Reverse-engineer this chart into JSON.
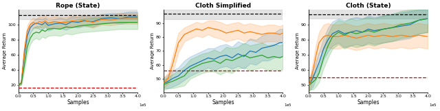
{
  "titles": [
    "Rope (State)",
    "Cloth Simplified",
    "Cloth (State)"
  ],
  "xlabel": "Samples",
  "ylabel": "Average Return",
  "line_colors": [
    "#1f77b4",
    "#ff7f0e",
    "#2ca02c"
  ],
  "alpha_fill": 0.18,
  "figsize": [
    6.4,
    1.62
  ],
  "dpi": 100,
  "plots": [
    {
      "ylim": [
        10,
        120
      ],
      "yticks": [
        20,
        40,
        60,
        80,
        100
      ],
      "yticklabels": [
        "20",
        "40",
        "60",
        "80",
        "100"
      ],
      "xlim": [
        0,
        400000.0
      ],
      "xticks": [
        0,
        50000.0,
        100000.0,
        150000.0,
        200000.0,
        250000.0,
        300000.0,
        350000.0,
        400000.0
      ],
      "xticklabels": [
        "0.0",
        "0.5",
        "1.0",
        "1.5",
        "2.0",
        "2.5",
        "3.0",
        "3.5",
        "4.0"
      ],
      "black_dashed_y": 113,
      "red_dashed_y": 16,
      "grey_band_ymin": 107,
      "grey_band_ymax": 122,
      "lines": [
        {
          "x": [
            0,
            2000,
            5000,
            10000,
            20000,
            30000,
            40000,
            50000,
            60000,
            70000,
            80000,
            90000,
            100000,
            120000,
            140000,
            160000,
            180000,
            200000,
            220000,
            250000,
            280000,
            310000,
            340000,
            370000,
            400000
          ],
          "y": [
            20,
            20,
            21,
            23,
            60,
            85,
            96,
            100,
            102,
            101,
            100,
            103,
            99,
            101,
            102,
            100,
            104,
            103,
            105,
            104,
            108,
            109,
            108,
            110,
            110
          ],
          "y_low": [
            19,
            19,
            20,
            21,
            53,
            78,
            90,
            95,
            96,
            94,
            93,
            97,
            92,
            95,
            95,
            93,
            97,
            96,
            98,
            97,
            102,
            103,
            101,
            103,
            103
          ],
          "y_high": [
            21,
            21,
            22,
            25,
            67,
            92,
            102,
            105,
            108,
            108,
            107,
            109,
            106,
            107,
            109,
            107,
            111,
            110,
            112,
            111,
            114,
            115,
            115,
            117,
            117
          ]
        },
        {
          "x": [
            0,
            2000,
            5000,
            10000,
            20000,
            30000,
            40000,
            50000,
            60000,
            70000,
            80000,
            90000,
            100000,
            120000,
            140000,
            160000,
            180000,
            200000,
            220000,
            250000,
            280000,
            310000,
            340000,
            370000,
            400000
          ],
          "y": [
            20,
            20,
            21,
            23,
            65,
            92,
            100,
            103,
            101,
            104,
            103,
            105,
            102,
            104,
            103,
            103,
            105,
            104,
            106,
            103,
            107,
            106,
            108,
            108,
            108
          ],
          "y_low": [
            19,
            19,
            20,
            21,
            58,
            85,
            94,
            97,
            95,
            97,
            96,
            98,
            95,
            97,
            96,
            96,
            98,
            97,
            99,
            96,
            100,
            99,
            101,
            101,
            101
          ],
          "y_high": [
            21,
            21,
            22,
            25,
            72,
            99,
            106,
            109,
            107,
            111,
            110,
            112,
            109,
            111,
            110,
            110,
            112,
            111,
            113,
            110,
            114,
            113,
            115,
            115,
            115
          ]
        },
        {
          "x": [
            0,
            2000,
            5000,
            10000,
            20000,
            30000,
            40000,
            50000,
            60000,
            70000,
            80000,
            90000,
            100000,
            120000,
            140000,
            160000,
            180000,
            200000,
            220000,
            250000,
            280000,
            310000,
            340000,
            370000,
            400000
          ],
          "y": [
            20,
            20,
            21,
            22,
            45,
            70,
            82,
            88,
            90,
            89,
            93,
            91,
            94,
            95,
            94,
            97,
            96,
            98,
            99,
            100,
            101,
            102,
            103,
            103,
            103
          ],
          "y_low": [
            19,
            19,
            19,
            20,
            38,
            62,
            74,
            80,
            82,
            80,
            84,
            82,
            85,
            86,
            85,
            88,
            87,
            89,
            90,
            91,
            92,
            93,
            94,
            94,
            94
          ],
          "y_high": [
            21,
            21,
            23,
            24,
            52,
            78,
            90,
            96,
            98,
            98,
            102,
            100,
            103,
            104,
            103,
            106,
            105,
            107,
            108,
            109,
            110,
            111,
            112,
            112,
            112
          ]
        }
      ]
    },
    {
      "ylim": [
        40,
        100
      ],
      "yticks": [
        50,
        60,
        70,
        80,
        90
      ],
      "yticklabels": [
        "50",
        "60",
        "70",
        "80",
        "90"
      ],
      "xlim": [
        0,
        400000.0
      ],
      "xticks": [
        0,
        50000.0,
        100000.0,
        150000.0,
        200000.0,
        250000.0,
        300000.0,
        350000.0,
        400000.0
      ],
      "xticklabels": [
        "0.0",
        "0.5",
        "1.0",
        "1.5",
        "2.0",
        "2.5",
        "3.0",
        "3.5",
        "4.0"
      ],
      "black_dashed_y": 97,
      "red_dashed_y": 56,
      "grey_band_ymin": 93,
      "grey_band_ymax": 100,
      "lines": [
        {
          "x": [
            0,
            5000,
            15000,
            30000,
            50000,
            70000,
            90000,
            110000,
            130000,
            150000,
            170000,
            190000,
            210000,
            230000,
            250000,
            270000,
            290000,
            310000,
            330000,
            350000,
            370000,
            390000,
            400000
          ],
          "y": [
            47,
            47,
            48,
            50,
            52,
            56,
            59,
            61,
            63,
            65,
            64,
            66,
            67,
            65,
            68,
            66,
            70,
            69,
            72,
            73,
            74,
            76,
            76
          ],
          "y_low": [
            43,
            43,
            43,
            44,
            46,
            49,
            52,
            54,
            56,
            58,
            56,
            58,
            59,
            57,
            59,
            57,
            61,
            60,
            63,
            63,
            65,
            66,
            66
          ],
          "y_high": [
            51,
            51,
            53,
            56,
            58,
            63,
            66,
            68,
            70,
            72,
            72,
            74,
            75,
            73,
            77,
            75,
            79,
            78,
            81,
            83,
            83,
            86,
            86
          ]
        },
        {
          "x": [
            0,
            5000,
            15000,
            30000,
            50000,
            70000,
            90000,
            110000,
            130000,
            150000,
            170000,
            190000,
            210000,
            230000,
            250000,
            270000,
            290000,
            310000,
            330000,
            350000,
            370000,
            390000,
            400000
          ],
          "y": [
            47,
            48,
            50,
            60,
            76,
            82,
            84,
            86,
            85,
            87,
            86,
            85,
            83,
            84,
            85,
            83,
            84,
            83,
            82,
            83,
            83,
            82,
            83
          ],
          "y_low": [
            43,
            44,
            46,
            54,
            69,
            77,
            79,
            81,
            80,
            82,
            80,
            79,
            77,
            78,
            79,
            77,
            78,
            77,
            76,
            77,
            77,
            76,
            77
          ],
          "y_high": [
            51,
            52,
            54,
            66,
            83,
            87,
            89,
            91,
            90,
            92,
            92,
            91,
            89,
            90,
            91,
            89,
            90,
            89,
            88,
            89,
            89,
            88,
            89
          ]
        },
        {
          "x": [
            0,
            5000,
            15000,
            30000,
            50000,
            70000,
            90000,
            110000,
            130000,
            150000,
            170000,
            190000,
            210000,
            230000,
            250000,
            270000,
            290000,
            310000,
            330000,
            350000,
            370000,
            390000,
            400000
          ],
          "y": [
            46,
            46,
            47,
            48,
            50,
            52,
            57,
            59,
            61,
            62,
            63,
            61,
            64,
            63,
            65,
            67,
            65,
            66,
            67,
            65,
            66,
            65,
            66
          ],
          "y_low": [
            42,
            42,
            43,
            43,
            44,
            45,
            50,
            52,
            54,
            55,
            55,
            53,
            55,
            54,
            57,
            58,
            56,
            57,
            58,
            56,
            57,
            56,
            57
          ],
          "y_high": [
            50,
            50,
            51,
            53,
            56,
            59,
            64,
            66,
            68,
            69,
            71,
            69,
            73,
            72,
            73,
            76,
            74,
            75,
            76,
            74,
            75,
            74,
            75
          ]
        }
      ]
    },
    {
      "ylim": [
        45,
        100
      ],
      "yticks": [
        50,
        60,
        70,
        80,
        90
      ],
      "yticklabels": [
        "50",
        "60",
        "70",
        "80",
        "90"
      ],
      "xlim": [
        0,
        400000.0
      ],
      "xticks": [
        0,
        50000.0,
        100000.0,
        150000.0,
        200000.0,
        250000.0,
        300000.0,
        350000.0,
        400000.0
      ],
      "xticklabels": [
        "0.0",
        "0.5",
        "1.0",
        "1.5",
        "2.0",
        "2.5",
        "3.0",
        "3.5",
        "4.0"
      ],
      "black_dashed_y": 97,
      "red_dashed_y": 55,
      "grey_band_ymin": 94,
      "grey_band_ymax": 102,
      "lines": [
        {
          "x": [
            0,
            3000,
            8000,
            15000,
            25000,
            35000,
            50000,
            65000,
            80000,
            100000,
            120000,
            140000,
            160000,
            180000,
            200000,
            220000,
            250000,
            280000,
            310000,
            340000,
            370000,
            400000
          ],
          "y": [
            50,
            51,
            52,
            55,
            60,
            65,
            74,
            80,
            84,
            86,
            84,
            85,
            86,
            85,
            87,
            86,
            87,
            88,
            89,
            90,
            93,
            94
          ],
          "y_low": [
            46,
            47,
            47,
            49,
            54,
            58,
            67,
            72,
            76,
            78,
            75,
            76,
            77,
            76,
            78,
            77,
            78,
            79,
            80,
            81,
            84,
            85
          ],
          "y_high": [
            54,
            55,
            57,
            61,
            66,
            72,
            81,
            88,
            92,
            94,
            93,
            94,
            95,
            94,
            96,
            95,
            96,
            97,
            98,
            99,
            100,
            100
          ]
        },
        {
          "x": [
            0,
            3000,
            8000,
            15000,
            25000,
            35000,
            50000,
            65000,
            80000,
            100000,
            120000,
            140000,
            160000,
            180000,
            200000,
            220000,
            250000,
            280000,
            310000,
            340000,
            370000,
            400000
          ],
          "y": [
            50,
            51,
            54,
            60,
            70,
            78,
            82,
            83,
            82,
            82,
            83,
            82,
            81,
            82,
            83,
            82,
            83,
            82,
            83,
            82,
            83,
            82
          ],
          "y_low": [
            46,
            47,
            49,
            54,
            63,
            71,
            74,
            75,
            74,
            74,
            75,
            74,
            73,
            74,
            75,
            74,
            75,
            74,
            75,
            74,
            75,
            74
          ],
          "y_high": [
            54,
            55,
            59,
            66,
            77,
            85,
            90,
            91,
            90,
            90,
            91,
            90,
            89,
            90,
            91,
            90,
            91,
            90,
            91,
            90,
            91,
            90
          ]
        },
        {
          "x": [
            0,
            3000,
            8000,
            15000,
            25000,
            35000,
            50000,
            65000,
            80000,
            100000,
            120000,
            140000,
            160000,
            180000,
            200000,
            220000,
            250000,
            280000,
            310000,
            340000,
            370000,
            400000
          ],
          "y": [
            50,
            50,
            51,
            52,
            54,
            58,
            68,
            76,
            82,
            85,
            83,
            85,
            84,
            85,
            86,
            85,
            87,
            88,
            90,
            91,
            93,
            94
          ],
          "y_low": [
            46,
            46,
            47,
            47,
            49,
            52,
            61,
            68,
            74,
            77,
            74,
            76,
            75,
            76,
            77,
            76,
            78,
            79,
            81,
            82,
            84,
            85
          ],
          "y_high": [
            54,
            54,
            55,
            57,
            59,
            64,
            75,
            84,
            90,
            93,
            92,
            94,
            93,
            94,
            95,
            94,
            96,
            97,
            99,
            100,
            100,
            100
          ]
        }
      ]
    }
  ]
}
